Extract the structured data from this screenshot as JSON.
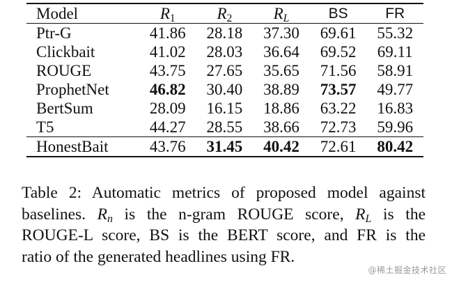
{
  "table": {
    "headers": [
      "Model",
      "R1",
      "R2",
      "RL",
      "BS",
      "FR"
    ],
    "rows": [
      {
        "model": "Ptr-G",
        "cells": [
          "41.86",
          "28.18",
          "37.30",
          "69.61",
          "55.32"
        ]
      },
      {
        "model": "Clickbait",
        "cells": [
          "41.02",
          "28.03",
          "36.64",
          "69.52",
          "69.11"
        ]
      },
      {
        "model": "ROUGE",
        "cells": [
          "43.75",
          "27.65",
          "35.65",
          "71.56",
          "58.91"
        ]
      },
      {
        "model": "ProphetNet",
        "cells": [
          "46.82",
          "30.40",
          "38.89",
          "73.57",
          "49.77"
        ]
      },
      {
        "model": "BertSum",
        "cells": [
          "28.09",
          "16.15",
          "18.86",
          "63.22",
          "16.83"
        ]
      },
      {
        "model": "T5",
        "cells": [
          "44.27",
          "28.55",
          "38.66",
          "72.73",
          "59.96"
        ]
      },
      {
        "model": "HonestBait",
        "cells": [
          "43.76",
          "31.45",
          "40.42",
          "72.61",
          "80.42"
        ]
      }
    ],
    "bold_cells": [
      {
        "row": 3,
        "col": 0
      },
      {
        "row": 3,
        "col": 3
      },
      {
        "row": 6,
        "col": 1
      },
      {
        "row": 6,
        "col": 2
      },
      {
        "row": 6,
        "col": 4
      }
    ]
  },
  "caption": {
    "line1": "Table 2:  Automatic metrics of proposed model against",
    "line2_a": "baselines.",
    "line2_b": "is the n-gram ROUGE score,",
    "line2_c": "is the",
    "line3": "ROUGE-L score, BS is the BERT score, and FR is the",
    "line4": "ratio of the generated headlines using FR."
  },
  "watermark": "@稀土掘金技术社区"
}
